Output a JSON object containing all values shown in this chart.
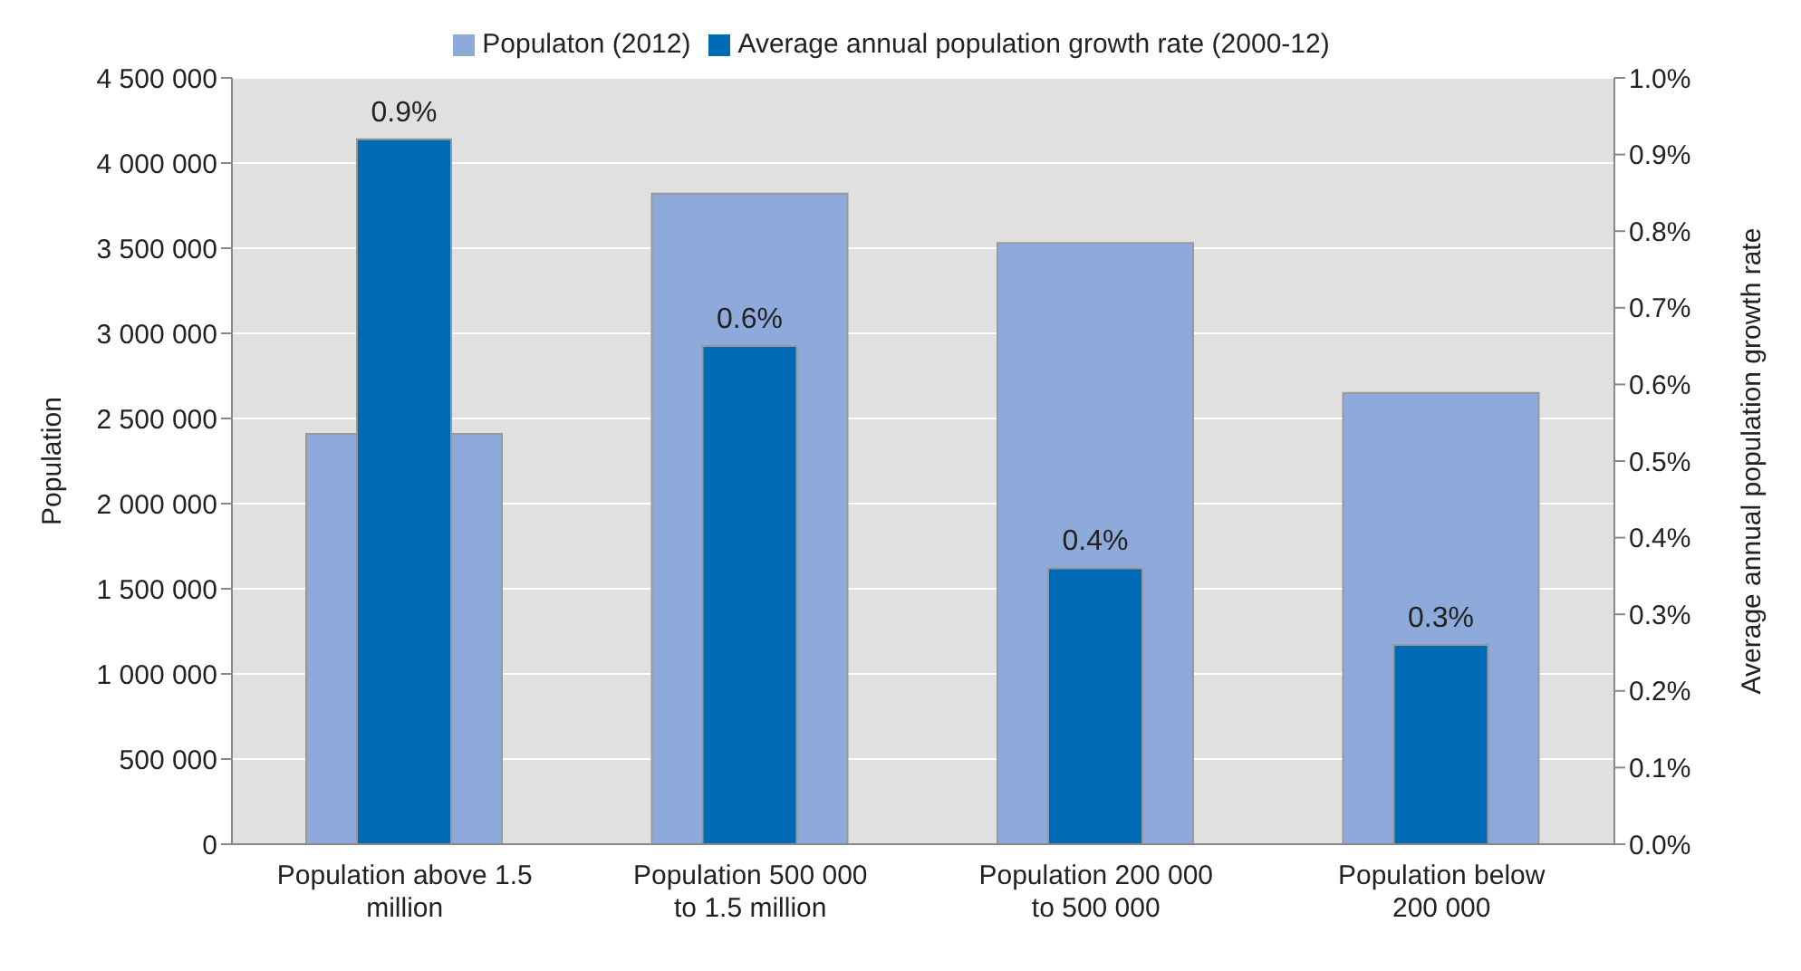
{
  "chart_data": {
    "type": "bar",
    "categories": [
      "Population above 1.5 million",
      "Population 500 000 to 1.5 million",
      "Population 200 000 to 500 000",
      "Population below 200 000"
    ],
    "series": [
      {
        "name": "Populaton (2012)",
        "color": "#8eaadb",
        "values": [
          2410000,
          3820000,
          3530000,
          2650000
        ]
      },
      {
        "name": "Average annual population growth rate (2000-12)",
        "color": "#006ab4",
        "values": [
          0.92,
          0.65,
          0.36,
          0.26
        ],
        "axis": "y2",
        "value_labels": [
          "0.9%",
          "0.6%",
          "0.4%",
          "0.3%"
        ]
      }
    ],
    "ylabel": "Population",
    "y2label": "Average annual population growth rate",
    "ylim": [
      0,
      4500000
    ],
    "yticks": [
      0,
      {
        "value": 500000,
        "label": "500 000"
      },
      {
        "value": 1000000,
        "label": "1 000 000"
      },
      {
        "value": 1500000,
        "label": "1 500 000"
      },
      {
        "value": 2000000,
        "label": "2 000 000"
      },
      {
        "value": 2500000,
        "label": "2 500 000"
      },
      {
        "value": 3000000,
        "label": "3 000 000"
      },
      {
        "value": 3500000,
        "label": "3 500 000"
      },
      {
        "value": 4000000,
        "label": "4 000 000"
      },
      {
        "value": 4500000,
        "label": "4 500 000"
      }
    ],
    "y2lim": [
      0,
      1
    ],
    "y2ticks": [
      {
        "value": 0,
        "label": "0.0%"
      },
      {
        "value": 0.1,
        "label": "0.1%"
      },
      {
        "value": 0.2,
        "label": "0.2%"
      },
      {
        "value": 0.3,
        "label": "0.3%"
      },
      {
        "value": 0.4,
        "label": "0.4%"
      },
      {
        "value": 0.5,
        "label": "0.5%"
      },
      {
        "value": 0.6,
        "label": "0.6%"
      },
      {
        "value": 0.7,
        "label": "0.7%"
      },
      {
        "value": 0.8,
        "label": "0.8%"
      },
      {
        "value": 0.9,
        "label": "0.9%"
      },
      {
        "value": 1,
        "label": "1.0%"
      }
    ],
    "grid": "y",
    "legend": "top"
  }
}
